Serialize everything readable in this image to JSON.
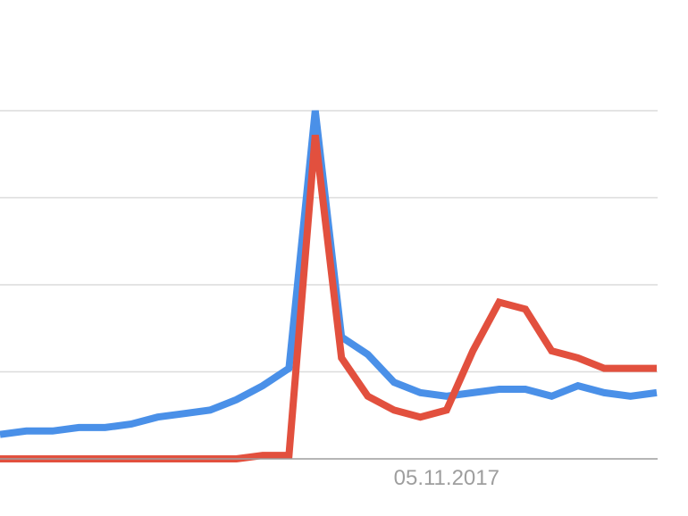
{
  "chart_data": {
    "type": "line",
    "title": "",
    "xlabel": "",
    "ylabel": "",
    "ylim": [
      0,
      100
    ],
    "y_gridlines": [
      25,
      50,
      75,
      100
    ],
    "grid": true,
    "legend": "none",
    "x_tick_labels": [
      {
        "index": 17,
        "label": "05.11.2017"
      }
    ],
    "series": [
      {
        "color": "#4a90e8",
        "values": [
          7,
          8,
          8,
          9,
          9,
          10,
          12,
          13,
          14,
          17,
          21,
          26,
          100,
          35,
          30,
          22,
          19,
          18,
          19,
          20,
          20,
          18,
          21,
          19,
          18,
          19
        ]
      },
      {
        "color": "#e2503e",
        "values": [
          0,
          0,
          0,
          0,
          0,
          0,
          0,
          0,
          0,
          0,
          1,
          1,
          93,
          29,
          18,
          14,
          12,
          14,
          31,
          45,
          43,
          31,
          29,
          26,
          26,
          26
        ]
      }
    ]
  }
}
